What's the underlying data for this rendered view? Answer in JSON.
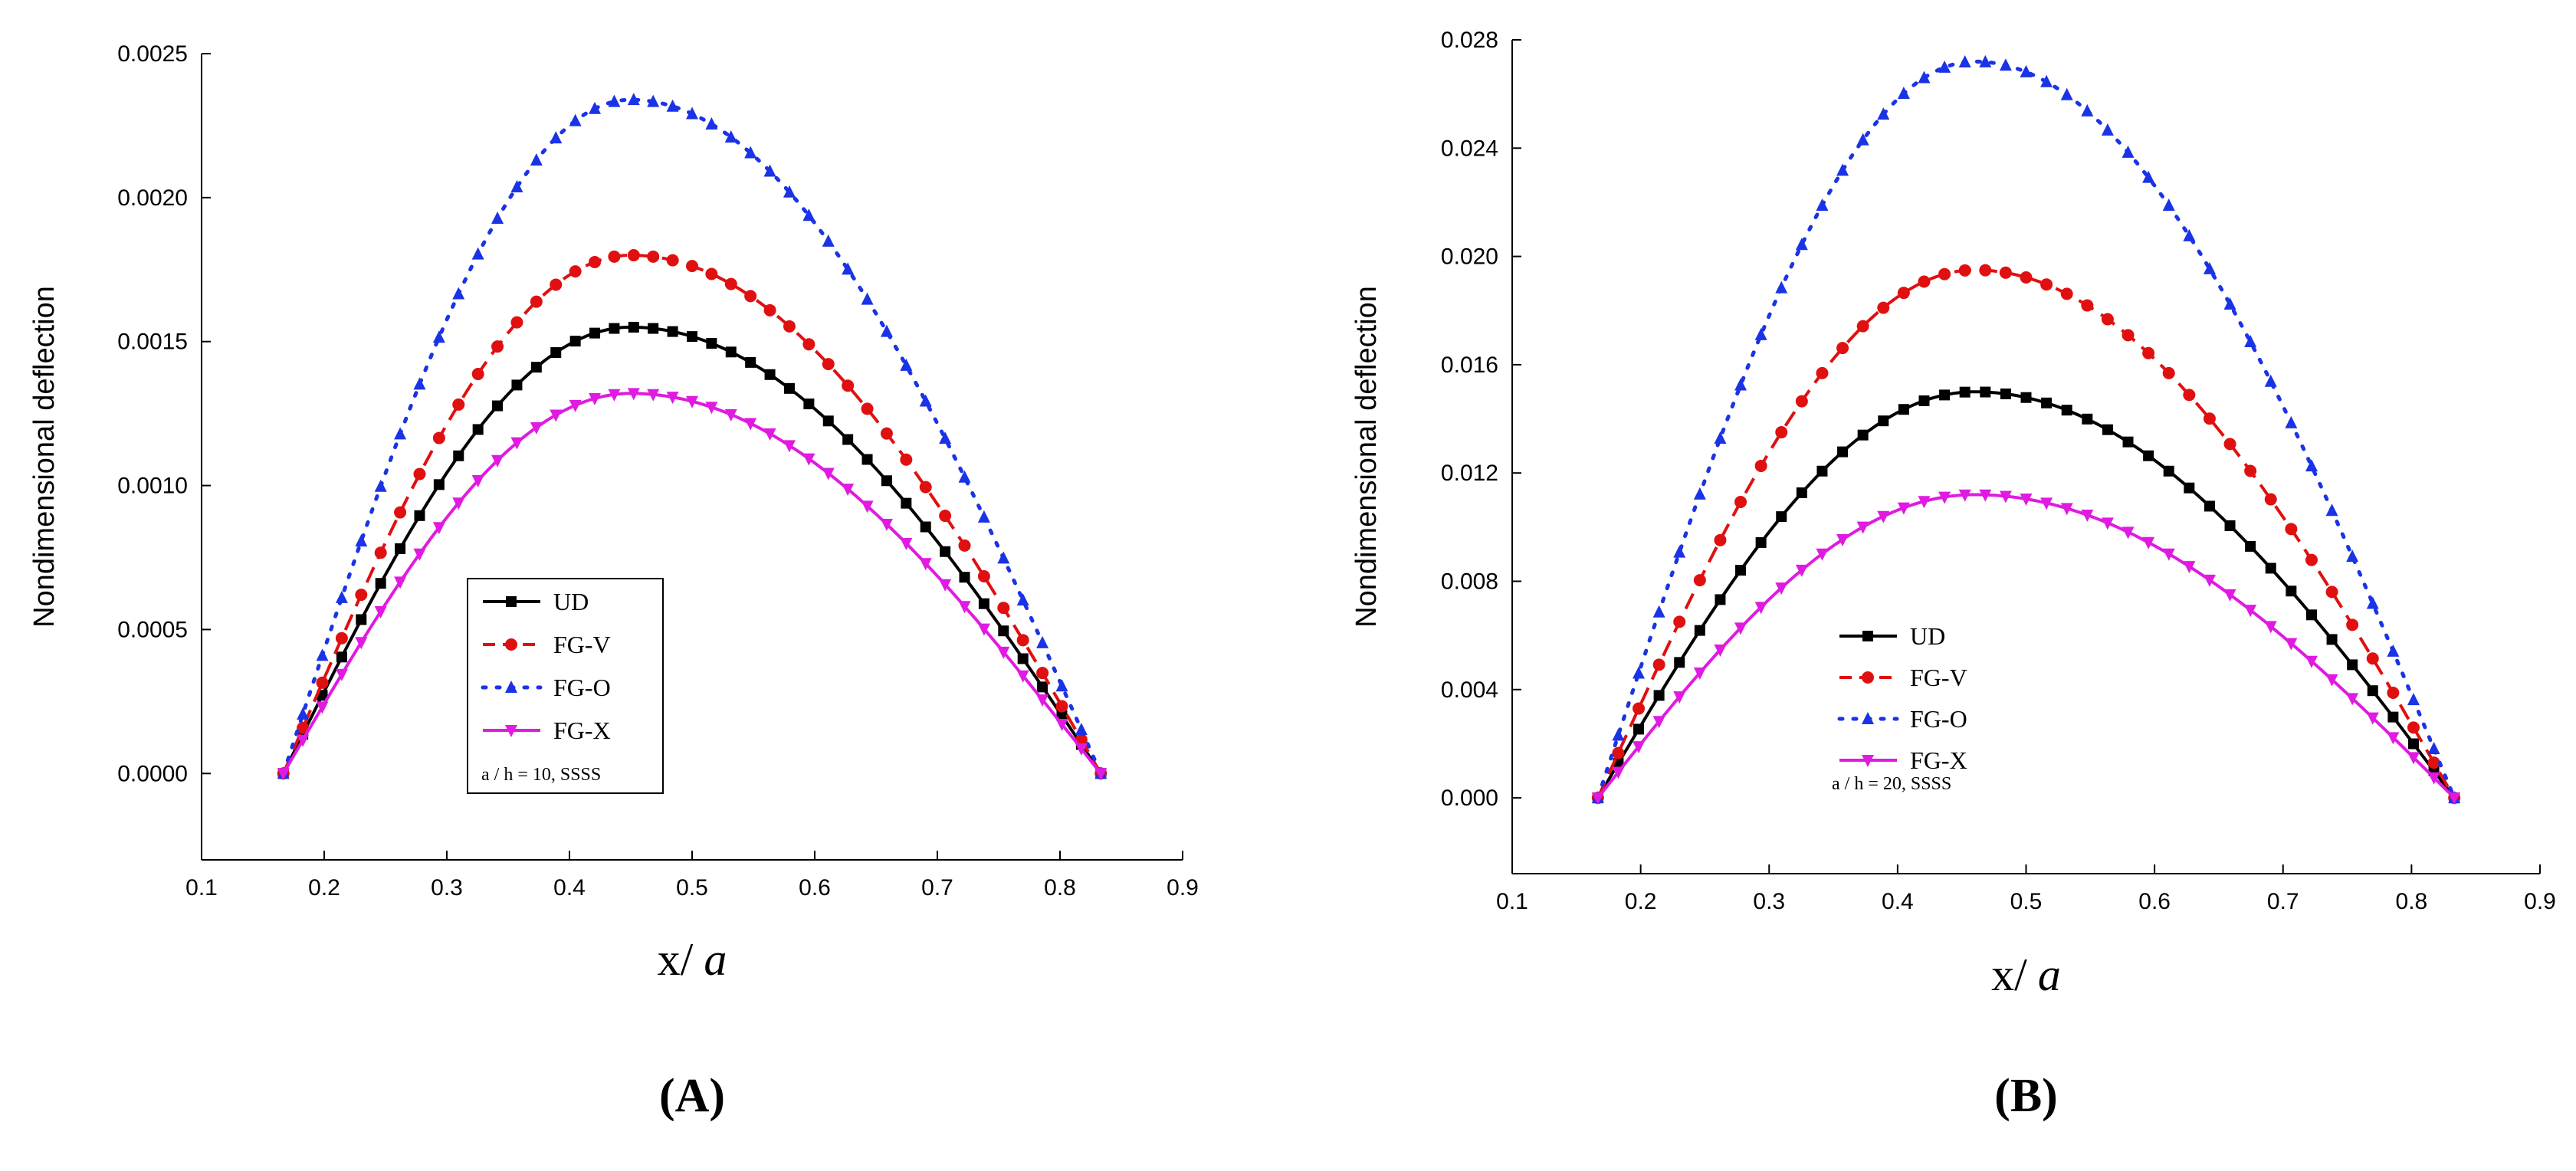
{
  "chart_data": [
    {
      "type": "line",
      "panel_label": "A",
      "xlabel": "x/",
      "xlabel_var": "a",
      "ylabel": "Nondimensional deflection",
      "xlim": [
        0.1,
        0.9
      ],
      "ylim": [
        -0.0003,
        0.0025
      ],
      "x_ticks": [
        0.1,
        0.2,
        0.3,
        0.4,
        0.5,
        0.6,
        0.7,
        0.8,
        0.9
      ],
      "x_tick_labels": [
        "0.1",
        "0.2",
        "0.3",
        "0.4",
        "0.5",
        "0.6",
        "0.7",
        "0.8",
        "0.9"
      ],
      "y_ticks": [
        0.0,
        0.0005,
        0.001,
        0.0015,
        0.002,
        0.0025
      ],
      "y_tick_labels": [
        "0.0000",
        "0.0005",
        "0.0010",
        "0.0015",
        "0.0020",
        "0.0025"
      ],
      "x_range": [
        0.1667,
        0.8333
      ],
      "peak_x": 0.45,
      "legend_note": "a / h = 10, SSSS",
      "series": [
        {
          "name": "UD",
          "peak": 0.00155,
          "color": "#000000",
          "dash": "",
          "marker": "square"
        },
        {
          "name": "FG-V",
          "peak": 0.0018,
          "color": "#e01010",
          "dash": "22 12",
          "marker": "circle"
        },
        {
          "name": "FG-O",
          "peak": 0.00234,
          "color": "#1a33e6",
          "dash": "4 14",
          "marker": "triangle-up"
        },
        {
          "name": "FG-X",
          "peak": 0.00132,
          "color": "#e01ae0",
          "dash": "",
          "marker": "triangle-down"
        }
      ]
    },
    {
      "type": "line",
      "panel_label": "B",
      "xlabel": "x/",
      "xlabel_var": "a",
      "ylabel": "Nondimensional deflection",
      "xlim": [
        0.1,
        0.9
      ],
      "ylim": [
        -0.0028,
        0.028
      ],
      "x_ticks": [
        0.1,
        0.2,
        0.3,
        0.4,
        0.5,
        0.6,
        0.7,
        0.8,
        0.9
      ],
      "x_tick_labels": [
        "0.1",
        "0.2",
        "0.3",
        "0.4",
        "0.5",
        "0.6",
        "0.7",
        "0.8",
        "0.9"
      ],
      "y_ticks": [
        0.0,
        0.004,
        0.008,
        0.012,
        0.016,
        0.02,
        0.024,
        0.028
      ],
      "y_tick_labels": [
        "0.000",
        "0.004",
        "0.008",
        "0.012",
        "0.016",
        "0.020",
        "0.024",
        "0.028"
      ],
      "x_range": [
        0.1667,
        0.8333
      ],
      "peak_x": 0.46,
      "legend_note": "a / h = 20, SSSS",
      "series": [
        {
          "name": "UD",
          "peak": 0.015,
          "color": "#000000",
          "dash": "",
          "marker": "square"
        },
        {
          "name": "FG-V",
          "peak": 0.0195,
          "color": "#e01010",
          "dash": "22 12",
          "marker": "circle"
        },
        {
          "name": "FG-O",
          "peak": 0.0272,
          "color": "#1a33e6",
          "dash": "4 14",
          "marker": "triangle-up"
        },
        {
          "name": "FG-X",
          "peak": 0.0112,
          "color": "#e01ae0",
          "dash": "",
          "marker": "triangle-down"
        }
      ]
    }
  ]
}
